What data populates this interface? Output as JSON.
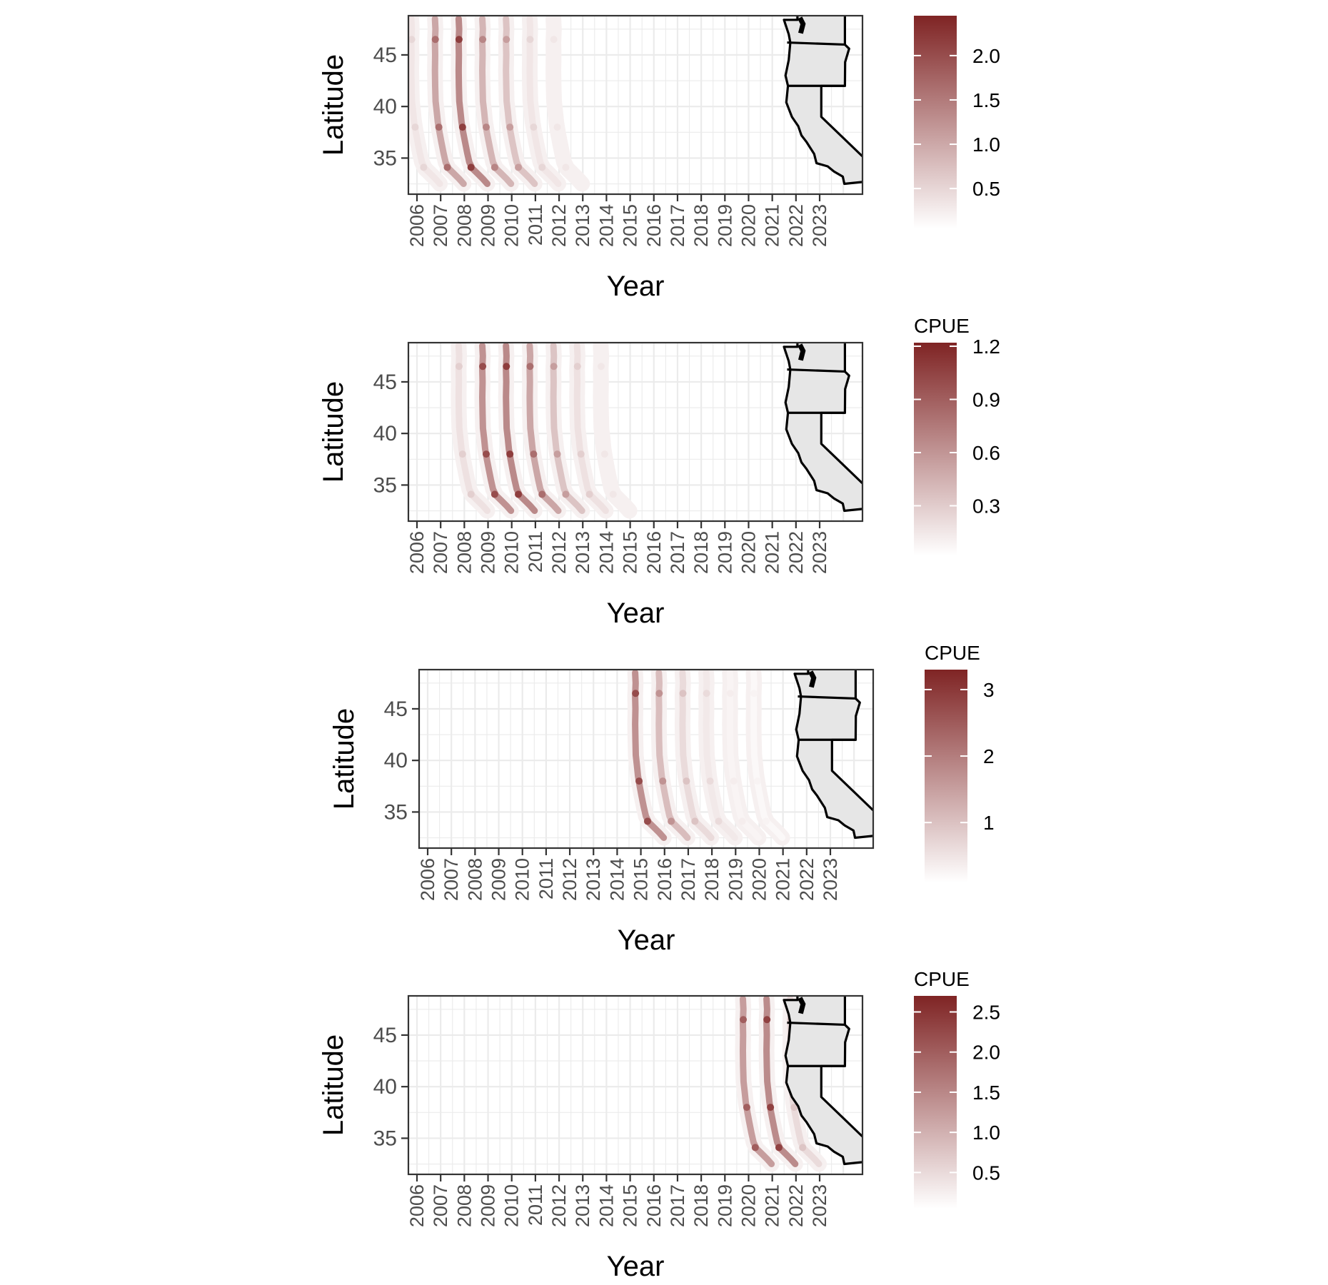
{
  "chart_data": [
    {
      "type": "heatmap",
      "xlabel": "Year",
      "ylabel": "Latitude",
      "x_ticks": [
        "2006",
        "2007",
        "2008",
        "2009",
        "2010",
        "2011",
        "2012",
        "2013",
        "2014",
        "2015",
        "2016",
        "2017",
        "2018",
        "2019",
        "2020",
        "2021",
        "2022",
        "2023"
      ],
      "y_ticks": [
        35,
        40,
        45
      ],
      "ylim": [
        31.5,
        48.8
      ],
      "legend": {
        "title": "",
        "min": 0.05,
        "max": 2.45,
        "ticks": [
          0.5,
          1.0,
          1.5,
          2.0
        ],
        "tick_labels": [
          "0.5",
          "1.0",
          "1.5",
          "2.0"
        ],
        "placement": "right"
      },
      "colors": {
        "low": "#ffffff",
        "high": "#7f2424"
      },
      "bands": [
        {
          "start_year": 2006,
          "years": [
            "2006",
            "2007",
            "2008",
            "2009",
            "2010",
            "2011",
            "2012"
          ],
          "peak_cpue": [
            0.5,
            1.8,
            2.4,
            1.5,
            1.2,
            0.5,
            0.3
          ]
        }
      ],
      "grid": true,
      "inset_map": [
        "Washington",
        "Oregon",
        "California"
      ]
    },
    {
      "type": "heatmap",
      "xlabel": "Year",
      "ylabel": "Latitude",
      "x_ticks": [
        "2006",
        "2007",
        "2008",
        "2009",
        "2010",
        "2011",
        "2012",
        "2013",
        "2014",
        "2015",
        "2016",
        "2017",
        "2018",
        "2019",
        "2020",
        "2021",
        "2022",
        "2023"
      ],
      "y_ticks": [
        35,
        40,
        45
      ],
      "ylim": [
        31.5,
        48.8
      ],
      "legend": {
        "title": "CPUE",
        "min": 0.02,
        "max": 1.22,
        "ticks": [
          0.3,
          0.6,
          0.9,
          1.2
        ],
        "tick_labels": [
          "0.3",
          "0.6",
          "0.9",
          "1.2"
        ],
        "placement": "right"
      },
      "colors": {
        "low": "#ffffff",
        "high": "#7f2424"
      },
      "bands": [
        {
          "start_year": 2008,
          "years": [
            "2008",
            "2009",
            "2010",
            "2011",
            "2012",
            "2013",
            "2014"
          ],
          "peak_cpue": [
            0.3,
            1.1,
            1.2,
            0.9,
            0.6,
            0.3,
            0.15
          ]
        }
      ],
      "grid": true,
      "inset_map": [
        "Washington",
        "Oregon",
        "California"
      ]
    },
    {
      "type": "heatmap",
      "xlabel": "Year",
      "ylabel": "Latitude",
      "x_ticks": [
        "2006",
        "2007",
        "2008",
        "2009",
        "2010",
        "2011",
        "2012",
        "2013",
        "2014",
        "2015",
        "2016",
        "2017",
        "2018",
        "2019",
        "2020",
        "2021",
        "2022",
        "2023"
      ],
      "y_ticks": [
        35,
        40,
        45
      ],
      "ylim": [
        31.5,
        48.8
      ],
      "legend": {
        "title": "CPUE",
        "min": 0.1,
        "max": 3.3,
        "ticks": [
          1,
          2,
          3
        ],
        "tick_labels": [
          "1",
          "2",
          "3"
        ],
        "placement": "right"
      },
      "colors": {
        "low": "#ffffff",
        "high": "#7f2424"
      },
      "bands": [
        {
          "start_year": 2015,
          "years": [
            "2015",
            "2016",
            "2017",
            "2018",
            "2019",
            "2020"
          ],
          "peak_cpue": [
            3.0,
            1.8,
            1.0,
            0.6,
            0.3,
            0.2
          ]
        }
      ],
      "grid": true,
      "inset_map": [
        "Washington",
        "Oregon",
        "California"
      ]
    },
    {
      "type": "heatmap",
      "xlabel": "Year",
      "ylabel": "Latitude",
      "x_ticks": [
        "2006",
        "2007",
        "2008",
        "2009",
        "2010",
        "2011",
        "2012",
        "2013",
        "2014",
        "2015",
        "2016",
        "2017",
        "2018",
        "2019",
        "2020",
        "2021",
        "2022",
        "2023"
      ],
      "y_ticks": [
        35,
        40,
        45
      ],
      "ylim": [
        31.5,
        48.8
      ],
      "legend": {
        "title": "CPUE",
        "min": 0.05,
        "max": 2.7,
        "ticks": [
          0.5,
          1.0,
          1.5,
          2.0,
          2.5
        ],
        "tick_labels": [
          "0.5",
          "1.0",
          "1.5",
          "2.0",
          "2.5"
        ],
        "placement": "right"
      },
      "colors": {
        "low": "#ffffff",
        "high": "#7f2424"
      },
      "bands": [
        {
          "start_year": 2020,
          "years": [
            "2020",
            "2021",
            "2022"
          ],
          "peak_cpue": [
            2.2,
            2.6,
            0.8
          ]
        }
      ],
      "grid": true,
      "inset_map": [
        "Washington",
        "Oregon",
        "California"
      ]
    }
  ]
}
